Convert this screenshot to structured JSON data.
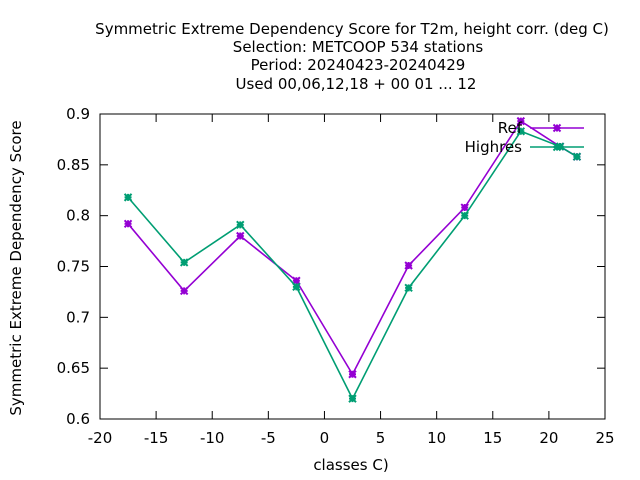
{
  "chart_data": {
    "type": "line",
    "title_lines": [
      "Symmetric Extreme Dependency Score  for T2m, height corr. (deg C)",
      "Selection: METCOOP    534 stations",
      "Period: 20240423-20240429",
      "Used  00,06,12,18 + 00 01 ... 12"
    ],
    "xlabel": "classes C)",
    "ylabel": "Symmetric Extreme Dependency Score",
    "xlim": [
      -20,
      25
    ],
    "ylim": [
      0.6,
      0.9
    ],
    "xticks": [
      -20,
      -15,
      -10,
      -5,
      0,
      5,
      10,
      15,
      20,
      25
    ],
    "xtick_labels": [
      "-20",
      "-15",
      "-10",
      "-5",
      "0",
      "5",
      "10",
      "15",
      "20",
      "25"
    ],
    "yticks": [
      0.6,
      0.65,
      0.7,
      0.75,
      0.8,
      0.85,
      0.9
    ],
    "ytick_labels": [
      "0.6",
      "0.65",
      "0.7",
      "0.75",
      "0.8",
      "0.85",
      "0.9"
    ],
    "legend_position": "top-right",
    "series": [
      {
        "name": "Ref",
        "color": "#9400d3",
        "marker": "plus-star",
        "x": [
          -17.5,
          -12.5,
          -7.5,
          -2.5,
          2.5,
          7.5,
          12.5,
          17.5,
          21,
          22.5
        ],
        "y": [
          0.792,
          0.726,
          0.78,
          0.736,
          0.644,
          0.751,
          0.808,
          0.893,
          0.868,
          0.858
        ]
      },
      {
        "name": "Highres",
        "color": "#009e73",
        "marker": "plus-star",
        "x": [
          -17.5,
          -12.5,
          -7.5,
          -2.5,
          2.5,
          7.5,
          12.5,
          17.5,
          21,
          22.5
        ],
        "y": [
          0.818,
          0.754,
          0.791,
          0.73,
          0.62,
          0.729,
          0.8,
          0.883,
          0.868,
          0.858
        ]
      }
    ]
  }
}
